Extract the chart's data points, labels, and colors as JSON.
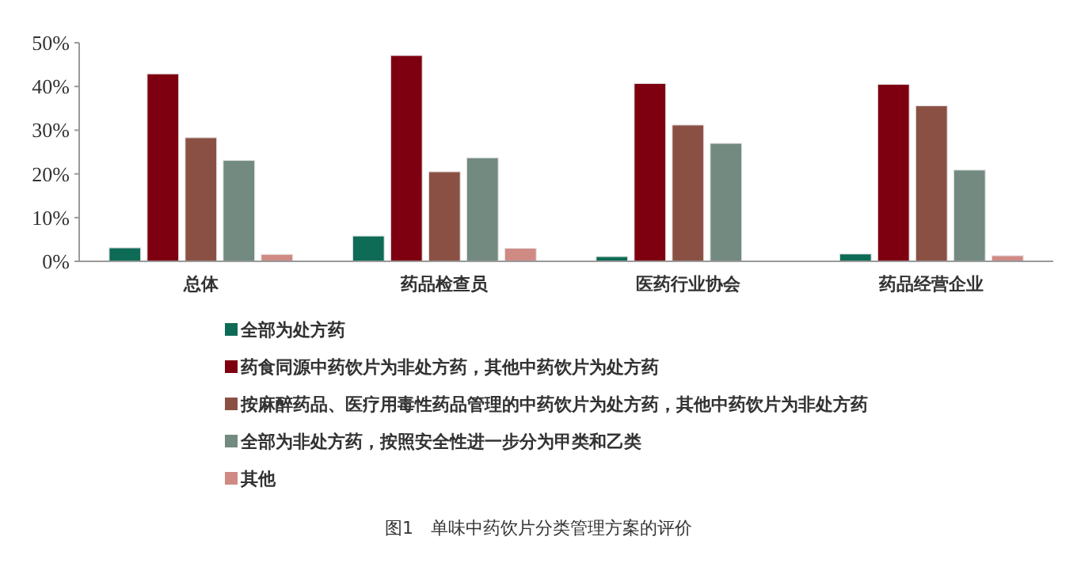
{
  "chart_data": {
    "type": "bar",
    "categories": [
      "总体",
      "药品检查员",
      "医药行业协会",
      "药品经营企业"
    ],
    "series": [
      {
        "name": "全部为处方药",
        "color": "#0e6b55",
        "values": [
          3.1,
          5.8,
          1.1,
          1.7
        ]
      },
      {
        "name": "药食同源中药饮片为非处方药，其他中药饮片为处方药",
        "color": "#7e0010",
        "values": [
          42.9,
          47.1,
          40.7,
          40.5
        ]
      },
      {
        "name": "按麻醉药品、医疗用毒性药品管理的中药饮片为处方药，其他中药饮片为非处方药",
        "color": "#8b5044",
        "values": [
          28.3,
          20.5,
          31.2,
          35.6
        ]
      },
      {
        "name": "全部为非处方药，按照安全性进一步分为甲类和乙类",
        "color": "#728a80",
        "values": [
          23.1,
          23.7,
          27.0,
          20.9
        ]
      },
      {
        "name": "其他",
        "color": "#d08a84",
        "values": [
          1.6,
          3.0,
          0,
          1.3
        ]
      }
    ],
    "ylim": [
      0,
      50
    ],
    "yticks": [
      {
        "value": 0,
        "label": "0%"
      },
      {
        "value": 10,
        "label": "10%"
      },
      {
        "value": 20,
        "label": "20%"
      },
      {
        "value": 30,
        "label": "30%"
      },
      {
        "value": 40,
        "label": "40%"
      },
      {
        "value": 50,
        "label": "50%"
      }
    ],
    "grid": false,
    "legend": "bottom",
    "annotations": [
      "图1　单味中药饮片分类管理方案的评价"
    ]
  }
}
